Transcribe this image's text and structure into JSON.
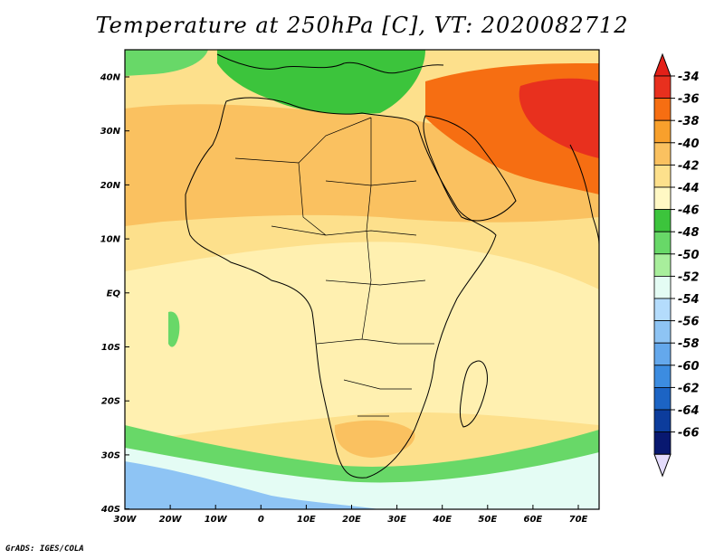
{
  "title": "Temperature at 250hPa [C], VT: 2020082712",
  "footer": "GrADS: IGES/COLA",
  "lat_labels": [
    "40N",
    "30N",
    "20N",
    "10N",
    "EQ",
    "10S",
    "20S",
    "30S",
    "40S"
  ],
  "lon_labels": [
    "30W",
    "20W",
    "10W",
    "0",
    "10E",
    "20E",
    "30E",
    "40E",
    "50E",
    "60E",
    "70E"
  ],
  "colorbar": {
    "labels": [
      "-34",
      "-36",
      "-38",
      "-40",
      "-42",
      "-44",
      "-46",
      "-48",
      "-50",
      "-52",
      "-54",
      "-56",
      "-58",
      "-60",
      "-62",
      "-64",
      "-66"
    ],
    "colors": [
      "#e8301e",
      "#f66e12",
      "#f8a02c",
      "#fac160",
      "#fde08c",
      "#fff8c4",
      "#3cc43c",
      "#68d868",
      "#a8ee9c",
      "#e4fcf4",
      "#b4dcfc",
      "#8ec4f4",
      "#64a8ec",
      "#3c8ce0",
      "#1c64c4",
      "#0c3c9c",
      "#081870"
    ],
    "over_color": "#e42018",
    "under_color": "#e4dcfc"
  },
  "map": {
    "background_color": "#fde08c",
    "region_colors": {
      "sahara_band": "#fac160",
      "arabia_hot": "#f66e12",
      "iran_core": "#e8301e",
      "mediterranean": "#3cc43c",
      "south_cold_1": "#68d868",
      "south_cold_2": "#e4fcf4",
      "south_cold_3": "#8ec4f4",
      "tropics": "#fff0b0"
    }
  }
}
